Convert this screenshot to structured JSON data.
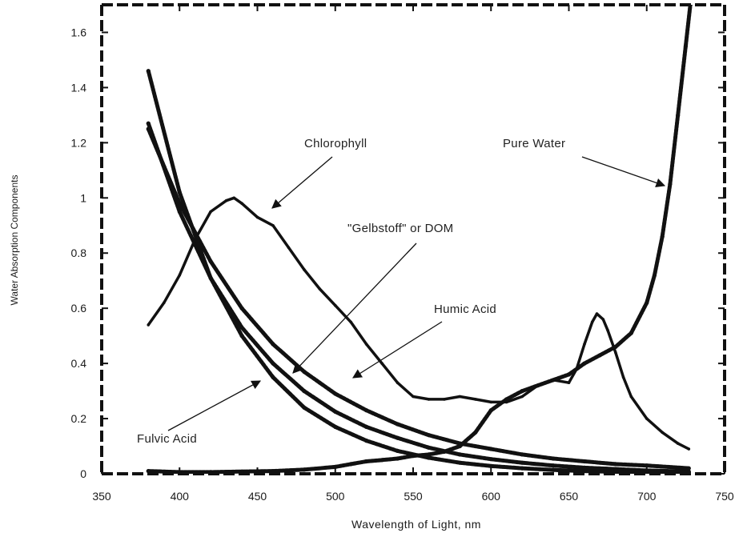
{
  "chart_data": {
    "type": "line",
    "title": "",
    "xlabel": "Wavelength of Light, nm",
    "ylabel": "Water Absorption Components",
    "xlim": [
      350,
      750
    ],
    "ylim": [
      0,
      1.7
    ],
    "xticks": [
      350,
      400,
      450,
      500,
      550,
      600,
      650,
      700,
      750
    ],
    "yticks": [
      0,
      0.2,
      0.4,
      0.6,
      0.8,
      1,
      1.2,
      1.4,
      1.6
    ],
    "ytick_labels": [
      "0",
      "0.2",
      "0.4",
      "0.6",
      "0.8",
      "1",
      "1.2",
      "1.4",
      "1.6"
    ],
    "grid": false,
    "legend": "none",
    "series": [
      {
        "name": "Chlorophyll",
        "x": [
          380,
          390,
          400,
          410,
          420,
          430,
          435,
          440,
          450,
          460,
          470,
          480,
          490,
          500,
          510,
          520,
          530,
          540,
          550,
          560,
          570,
          580,
          590,
          600,
          610,
          620,
          630,
          640,
          650,
          655,
          660,
          665,
          668,
          672,
          675,
          680,
          685,
          690,
          700,
          710,
          720,
          727
        ],
        "y": [
          0.54,
          0.62,
          0.72,
          0.85,
          0.95,
          0.99,
          1.0,
          0.98,
          0.93,
          0.9,
          0.82,
          0.74,
          0.67,
          0.61,
          0.55,
          0.47,
          0.4,
          0.33,
          0.28,
          0.27,
          0.27,
          0.28,
          0.27,
          0.26,
          0.26,
          0.28,
          0.32,
          0.34,
          0.33,
          0.38,
          0.47,
          0.55,
          0.58,
          0.56,
          0.52,
          0.44,
          0.35,
          0.28,
          0.2,
          0.15,
          0.11,
          0.09
        ]
      },
      {
        "name": "Pure Water",
        "x": [
          380,
          400,
          420,
          440,
          460,
          480,
          500,
          510,
          520,
          530,
          540,
          550,
          560,
          570,
          580,
          590,
          600,
          610,
          620,
          630,
          640,
          650,
          660,
          670,
          680,
          690,
          700,
          705,
          710,
          715,
          720,
          725,
          728
        ],
        "y": [
          0.01,
          0.006,
          0.006,
          0.008,
          0.01,
          0.015,
          0.025,
          0.035,
          0.045,
          0.05,
          0.055,
          0.065,
          0.07,
          0.08,
          0.1,
          0.15,
          0.23,
          0.27,
          0.3,
          0.32,
          0.34,
          0.36,
          0.4,
          0.43,
          0.46,
          0.51,
          0.62,
          0.72,
          0.86,
          1.05,
          1.3,
          1.55,
          1.7
        ]
      },
      {
        "name": "\"Gelbstoff\" or DOM",
        "x": [
          380,
          400,
          420,
          440,
          460,
          480,
          500,
          520,
          540,
          560,
          580,
          600,
          620,
          640,
          660,
          680,
          700,
          727
        ],
        "y": [
          1.27,
          0.95,
          0.71,
          0.53,
          0.4,
          0.3,
          0.225,
          0.17,
          0.13,
          0.095,
          0.07,
          0.053,
          0.04,
          0.03,
          0.022,
          0.017,
          0.012,
          0.008
        ]
      },
      {
        "name": "Humic Acid",
        "x": [
          380,
          400,
          420,
          440,
          460,
          480,
          500,
          520,
          540,
          560,
          580,
          600,
          620,
          640,
          660,
          680,
          700,
          727
        ],
        "y": [
          1.25,
          0.98,
          0.77,
          0.6,
          0.47,
          0.37,
          0.29,
          0.23,
          0.18,
          0.14,
          0.11,
          0.09,
          0.07,
          0.055,
          0.045,
          0.035,
          0.03,
          0.02
        ]
      },
      {
        "name": "Fulvic Acid",
        "x": [
          380,
          400,
          420,
          440,
          460,
          480,
          500,
          520,
          540,
          560,
          580,
          600,
          620,
          640,
          660,
          680,
          700,
          727
        ],
        "y": [
          1.46,
          1.02,
          0.71,
          0.5,
          0.35,
          0.24,
          0.17,
          0.12,
          0.083,
          0.058,
          0.04,
          0.028,
          0.02,
          0.014,
          0.01,
          0.007,
          0.005,
          0.003
        ]
      }
    ],
    "annotations": [
      {
        "text": "Chlorophyll",
        "target": "Chlorophyll"
      },
      {
        "text": "Pure Water",
        "target": "Pure Water"
      },
      {
        "text": "\"Gelbstoff\" or DOM",
        "target": "\"Gelbstoff\" or DOM"
      },
      {
        "text": "Humic Acid",
        "target": "Humic Acid"
      },
      {
        "text": "Fulvic Acid",
        "target": "Fulvic Acid"
      }
    ]
  }
}
